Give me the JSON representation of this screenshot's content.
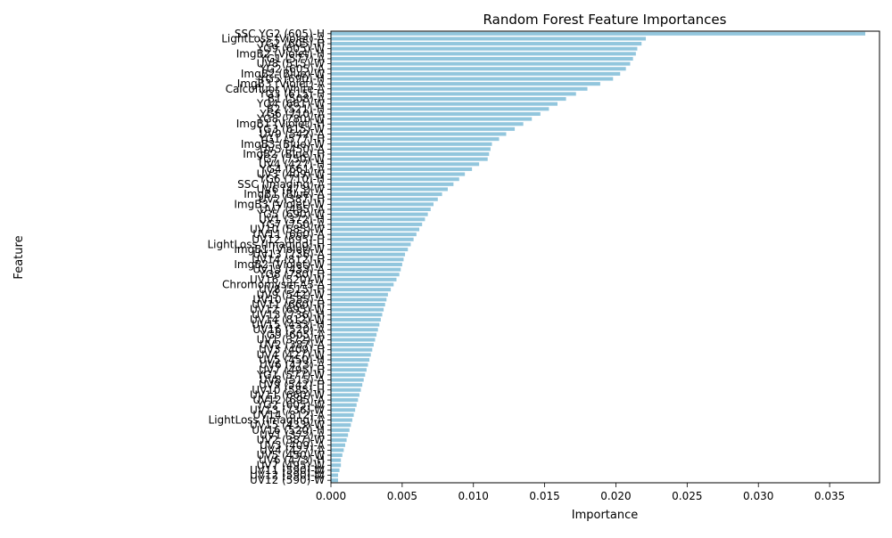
{
  "chart_data": {
    "type": "bar",
    "orientation": "horizontal",
    "title": "Random Forest Feature Importances",
    "xlabel": "Importance",
    "ylabel": "Feature",
    "xlim": [
      0,
      0.0385
    ],
    "xticks": [
      0.0,
      0.005,
      0.01,
      0.015,
      0.02,
      0.025,
      0.03,
      0.035
    ],
    "xtick_labels": [
      "0.000",
      "0.005",
      "0.010",
      "0.015",
      "0.020",
      "0.025",
      "0.030",
      "0.035"
    ],
    "bar_color": "#92c6dd",
    "grid": false,
    "categories": [
      "SSC YG2 (605)-H",
      "LightLoss (Violet)-A",
      "YG2 (605)-H",
      "YG9 (605)-W",
      "ImgB2 (Violet)-H",
      "YG1 (577)-A",
      "UV8 (515)-W",
      "YG2 (605)-A",
      "ImgB2 (Blue)-W",
      "YG5 (690)-H",
      "ImgB3 (Violet)-A",
      "Calcofluor White-A",
      "YG3 (615)-H",
      "B1 (508)-A",
      "YG4 (661)-W",
      "B2 (521)-H",
      "YG6 (710)-A",
      "YG8 (780)-W",
      "ImgB1 (Violet)-H",
      "YG3 (615)-W",
      "UV9 (542)-A",
      "YG1 (577)-H",
      "ImgB3 (Blue)-W",
      "UV5 (450)-A",
      "ImgB2 (Blue)-H",
      "YG7 (750)-W",
      "UV4 (427)-H",
      "YG4 (661)-A",
      "UV3 (409)-W",
      "YG6 (710)-H",
      "SSC (Imaging)-A",
      "UV6 (473)-W",
      "ImgB1 (Blue)-A",
      "UV2 (387)-H",
      "ImgB3 (Violet)-W",
      "UV7 (495)-A",
      "YG5 (690)-W",
      "UV1 (372)-H",
      "YG7 (750)-A",
      "UV10 (585)-W",
      "UV11 (660)-A",
      "UV12 (695)-H",
      "LightLoss (Imaging)-H",
      "ImgB1 (Violet)-W",
      "UV13 (736)-A",
      "UV14 (812)-H",
      "ImgB2 (Violet)-W",
      "UV15 (433)-A",
      "YG8 (780)-H",
      "UV16 (520)-W",
      "Chromomysin A3-A",
      "UV8 (515)-H",
      "UV9 (542)-W",
      "UV10 (585)-A",
      "UV11 (660)-H",
      "UV12 (695)-W",
      "UV13 (736)-H",
      "UV14 (812)-W",
      "UV15 (433)-H",
      "UV16 (520)-A",
      "YG9 (605)-A",
      "UV1 (372)-W",
      "UV2 (387)-A",
      "UV3 (409)-H",
      "UV4 (427)-W",
      "UV5 (450)-H",
      "UV6 (473)-A",
      "UV7 (495)-H",
      "YG1 (577)-W",
      "UV8 (515)-A",
      "UV9 (542)-H",
      "UV10 (585)-H",
      "UV11 (660)-W",
      "UV12 (695)-A",
      "YG2 (605)-W",
      "UV13 (736)-W",
      "UV14 (812)-A",
      "LightLoss (Imaging)-A",
      "UV15 (433)-W",
      "UV16 (520)-H",
      "UV1 (372)-A",
      "UV2 (387)-W",
      "UV3 (409)-A",
      "UV4 (427)-A",
      "UV5 (450)-W",
      "UV6 (473)-H",
      "UV7 (495)-W",
      "UV11 (590)-W",
      "UV12 (590)-W",
      "UV12 (590)-W"
    ],
    "values": [
      0.0375,
      0.0221,
      0.0218,
      0.0215,
      0.0214,
      0.0212,
      0.021,
      0.0207,
      0.0203,
      0.0198,
      0.0189,
      0.018,
      0.0172,
      0.0165,
      0.0159,
      0.0153,
      0.0147,
      0.0141,
      0.0135,
      0.0129,
      0.0123,
      0.0118,
      0.0113,
      0.0112,
      0.0111,
      0.011,
      0.0104,
      0.0099,
      0.0094,
      0.009,
      0.0086,
      0.0082,
      0.0078,
      0.0075,
      0.0072,
      0.007,
      0.0068,
      0.0066,
      0.0064,
      0.0062,
      0.006,
      0.0058,
      0.0056,
      0.0054,
      0.0052,
      0.0051,
      0.005,
      0.0049,
      0.0048,
      0.0046,
      0.0044,
      0.0042,
      0.004,
      0.0039,
      0.0038,
      0.0037,
      0.0036,
      0.0035,
      0.0034,
      0.0033,
      0.0032,
      0.0031,
      0.003,
      0.0029,
      0.0028,
      0.0027,
      0.0026,
      0.0025,
      0.0024,
      0.0023,
      0.0022,
      0.0021,
      0.002,
      0.0019,
      0.0018,
      0.0017,
      0.0016,
      0.0015,
      0.0014,
      0.0013,
      0.0012,
      0.0011,
      0.001,
      0.0009,
      0.0008,
      0.0007,
      0.0007,
      0.0006,
      0.0005,
      0.0005
    ]
  }
}
